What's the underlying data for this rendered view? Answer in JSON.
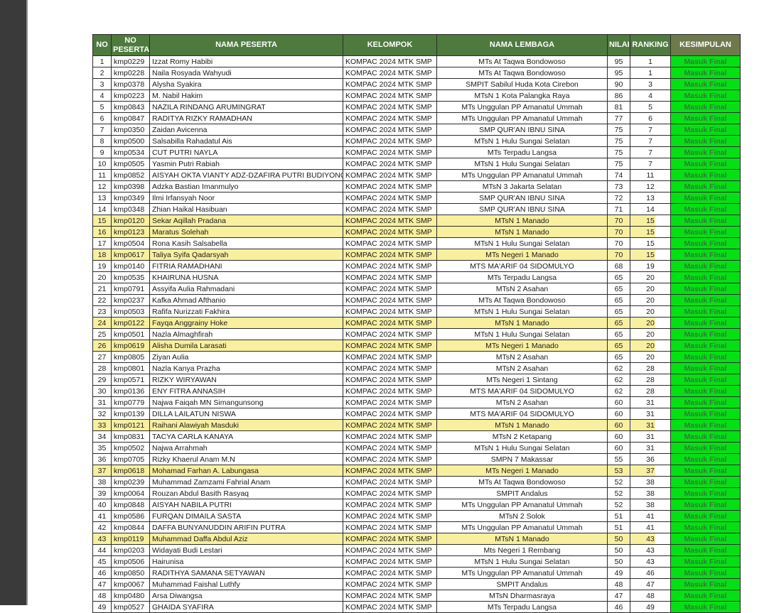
{
  "theme": {
    "sidebar_color": "#3a3a3a",
    "header_green": "#4e7a3e",
    "kesimpulan_header_olive": "#6e7a4c",
    "highlight_yellow": "#f8f09f",
    "final_green_bg": "#05e014",
    "final_text_green": "#35793c"
  },
  "table": {
    "columns": [
      {
        "key": "no",
        "label": "NO",
        "align": "center"
      },
      {
        "key": "no_peserta",
        "label": "NO PESERTA",
        "align": "left"
      },
      {
        "key": "nama_peserta",
        "label": "NAMA PESERTA",
        "align": "left"
      },
      {
        "key": "kelompok",
        "label": "KELOMPOK",
        "align": "left"
      },
      {
        "key": "nama_lembaga",
        "label": "NAMA LEMBAGA",
        "align": "center"
      },
      {
        "key": "nilai",
        "label": "NILAI",
        "align": "center"
      },
      {
        "key": "ranking",
        "label": "RANKING",
        "align": "center"
      },
      {
        "key": "kesimpulan",
        "label": "KESIMPULAN",
        "align": "center"
      }
    ],
    "rows": [
      {
        "no": "1",
        "no_peserta": "kmp0229",
        "nama_peserta": "Izzat Romy Habibi",
        "kelompok": "KOMPAC 2024 MTK SMP",
        "nama_lembaga": "MTs At Taqwa Bondowoso",
        "nilai": "95",
        "ranking": "1",
        "kesimpulan": "Masuk Final",
        "highlighted": false
      },
      {
        "no": "2",
        "no_peserta": "kmp0228",
        "nama_peserta": "Naila Rosyada Wahyudi",
        "kelompok": "KOMPAC 2024 MTK SMP",
        "nama_lembaga": "MTs At Taqwa Bondowoso",
        "nilai": "95",
        "ranking": "1",
        "kesimpulan": "Masuk Final",
        "highlighted": false
      },
      {
        "no": "3",
        "no_peserta": "kmp0378",
        "nama_peserta": "Alysha Syakira",
        "kelompok": "KOMPAC 2024 MTK SMP",
        "nama_lembaga": "SMPIT Sabilul Huda Kota Cirebon",
        "nilai": "90",
        "ranking": "3",
        "kesimpulan": "Masuk Final",
        "highlighted": false
      },
      {
        "no": "4",
        "no_peserta": "kmp0223",
        "nama_peserta": "M. Nabil Hakim",
        "kelompok": "KOMPAC 2024 MTK SMP",
        "nama_lembaga": "MTsN 1 Kota Palangka Raya",
        "nilai": "86",
        "ranking": "4",
        "kesimpulan": "Masuk Final",
        "highlighted": false
      },
      {
        "no": "5",
        "no_peserta": "kmp0843",
        "nama_peserta": "NAZILA RINDANG ARUMINGRAT",
        "kelompok": "KOMPAC 2024 MTK SMP",
        "nama_lembaga": "MTs Unggulan PP Amanatul Ummah",
        "nilai": "81",
        "ranking": "5",
        "kesimpulan": "Masuk Final",
        "highlighted": false
      },
      {
        "no": "6",
        "no_peserta": "kmp0847",
        "nama_peserta": "RADITYA RIZKY RAMADHAN",
        "kelompok": "KOMPAC 2024 MTK SMP",
        "nama_lembaga": "MTs Unggulan PP Amanatul Ummah",
        "nilai": "77",
        "ranking": "6",
        "kesimpulan": "Masuk Final",
        "highlighted": false
      },
      {
        "no": "7",
        "no_peserta": "kmp0350",
        "nama_peserta": "Zaidan Avicenna",
        "kelompok": "KOMPAC 2024 MTK SMP",
        "nama_lembaga": "SMP QUR'AN IBNU SINA",
        "nilai": "75",
        "ranking": "7",
        "kesimpulan": "Masuk Final",
        "highlighted": false
      },
      {
        "no": "8",
        "no_peserta": "kmp0500",
        "nama_peserta": "Salsabilla Rahadatul Ais",
        "kelompok": "KOMPAC 2024 MTK SMP",
        "nama_lembaga": "MTsN 1 Hulu Sungai Selatan",
        "nilai": "75",
        "ranking": "7",
        "kesimpulan": "Masuk Final",
        "highlighted": false
      },
      {
        "no": "9",
        "no_peserta": "kmp0534",
        "nama_peserta": "CUT PUTRI NAYLA",
        "kelompok": "KOMPAC 2024 MTK SMP",
        "nama_lembaga": "MTs Terpadu Langsa",
        "nilai": "75",
        "ranking": "7",
        "kesimpulan": "Masuk Final",
        "highlighted": false
      },
      {
        "no": "10",
        "no_peserta": "kmp0505",
        "nama_peserta": "Yasmin Putri Rabiah",
        "kelompok": "KOMPAC 2024 MTK SMP",
        "nama_lembaga": "MTsN 1 Hulu Sungai Selatan",
        "nilai": "75",
        "ranking": "7",
        "kesimpulan": "Masuk Final",
        "highlighted": false
      },
      {
        "no": "11",
        "no_peserta": "kmp0852",
        "nama_peserta": "AISYAH OKTA VIANTY ADZ-DZAFIRA PUTRI BUDIYONO",
        "kelompok": "KOMPAC 2024 MTK SMP",
        "nama_lembaga": "MTs Unggulan PP Amanatul Ummah",
        "nilai": "74",
        "ranking": "11",
        "kesimpulan": "Masuk Final",
        "highlighted": false
      },
      {
        "no": "12",
        "no_peserta": "kmp0398",
        "nama_peserta": "Adzka Bastian Imanmulyo",
        "kelompok": "KOMPAC 2024 MTK SMP",
        "nama_lembaga": "MTsN 3 Jakarta Selatan",
        "nilai": "73",
        "ranking": "12",
        "kesimpulan": "Masuk Final",
        "highlighted": false
      },
      {
        "no": "13",
        "no_peserta": "kmp0349",
        "nama_peserta": "Ilmi Irfansyah Noor",
        "kelompok": "KOMPAC 2024 MTK SMP",
        "nama_lembaga": "SMP QUR'AN IBNU SINA",
        "nilai": "72",
        "ranking": "13",
        "kesimpulan": "Masuk Final",
        "highlighted": false
      },
      {
        "no": "14",
        "no_peserta": "kmp0348",
        "nama_peserta": "Zhian Haikal Hasibuan",
        "kelompok": "KOMPAC 2024 MTK SMP",
        "nama_lembaga": "SMP QUR'AN IBNU SINA",
        "nilai": "71",
        "ranking": "14",
        "kesimpulan": "Masuk Final",
        "highlighted": false
      },
      {
        "no": "15",
        "no_peserta": "kmp0120",
        "nama_peserta": "Sekar Aqillah Pradana",
        "kelompok": "KOMPAC 2024 MTK SMP",
        "nama_lembaga": "MTsN 1 Manado",
        "nilai": "70",
        "ranking": "15",
        "kesimpulan": "Masuk Final",
        "highlighted": true
      },
      {
        "no": "16",
        "no_peserta": "kmp0123",
        "nama_peserta": "Maratus Solehah",
        "kelompok": "KOMPAC 2024 MTK SMP",
        "nama_lembaga": "MTsN 1 Manado",
        "nilai": "70",
        "ranking": "15",
        "kesimpulan": "Masuk Final",
        "highlighted": true
      },
      {
        "no": "17",
        "no_peserta": "kmp0504",
        "nama_peserta": "Rona Kasih Salsabella",
        "kelompok": "KOMPAC 2024 MTK SMP",
        "nama_lembaga": "MTsN 1 Hulu Sungai Selatan",
        "nilai": "70",
        "ranking": "15",
        "kesimpulan": "Masuk Final",
        "highlighted": false
      },
      {
        "no": "18",
        "no_peserta": "kmp0617",
        "nama_peserta": "Taliya Syifa Qadarsyah",
        "kelompok": "KOMPAC 2024 MTK SMP",
        "nama_lembaga": "MTs Negeri 1 Manado",
        "nilai": "70",
        "ranking": "15",
        "kesimpulan": "Masuk Final",
        "highlighted": true
      },
      {
        "no": "19",
        "no_peserta": "kmp0140",
        "nama_peserta": "FITRIA RAMADHANI",
        "kelompok": "KOMPAC 2024 MTK SMP",
        "nama_lembaga": "MTS MA'ARIF 04 SIDOMULYO",
        "nilai": "68",
        "ranking": "19",
        "kesimpulan": "Masuk Final",
        "highlighted": false
      },
      {
        "no": "20",
        "no_peserta": "kmp0535",
        "nama_peserta": "KHAIRUNA HUSNA",
        "kelompok": "KOMPAC 2024 MTK SMP",
        "nama_lembaga": "MTs Terpadu Langsa",
        "nilai": "65",
        "ranking": "20",
        "kesimpulan": "Masuk Final",
        "highlighted": false
      },
      {
        "no": "21",
        "no_peserta": "kmp0791",
        "nama_peserta": "Assyifa Aulia Rahmadani",
        "kelompok": "KOMPAC 2024 MTK SMP",
        "nama_lembaga": "MTsN 2 Asahan",
        "nilai": "65",
        "ranking": "20",
        "kesimpulan": "Masuk Final",
        "highlighted": false
      },
      {
        "no": "22",
        "no_peserta": "kmp0237",
        "nama_peserta": "Kafka Ahmad Afthanio",
        "kelompok": "KOMPAC 2024 MTK SMP",
        "nama_lembaga": "MTs At Taqwa Bondowoso",
        "nilai": "65",
        "ranking": "20",
        "kesimpulan": "Masuk Final",
        "highlighted": false
      },
      {
        "no": "23",
        "no_peserta": "kmp0503",
        "nama_peserta": "Rafifa Nurizzati Fakhira",
        "kelompok": "KOMPAC 2024 MTK SMP",
        "nama_lembaga": "MTsN 1 Hulu Sungai Selatan",
        "nilai": "65",
        "ranking": "20",
        "kesimpulan": "Masuk Final",
        "highlighted": false
      },
      {
        "no": "24",
        "no_peserta": "kmp0122",
        "nama_peserta": "Fayqa Anggrainy Hoke",
        "kelompok": "KOMPAC 2024 MTK SMP",
        "nama_lembaga": "MTsN 1 Manado",
        "nilai": "65",
        "ranking": "20",
        "kesimpulan": "Masuk Final",
        "highlighted": true
      },
      {
        "no": "25",
        "no_peserta": "kmp0501",
        "nama_peserta": "Nazla Almaghfirah",
        "kelompok": "KOMPAC 2024 MTK SMP",
        "nama_lembaga": "MTsN 1 Hulu Sungai Selatan",
        "nilai": "65",
        "ranking": "20",
        "kesimpulan": "Masuk Final",
        "highlighted": false
      },
      {
        "no": "26",
        "no_peserta": "kmp0619",
        "nama_peserta": "Alisha Dumila Larasati",
        "kelompok": "KOMPAC 2024 MTK SMP",
        "nama_lembaga": "MTs Negeri 1 Manado",
        "nilai": "65",
        "ranking": "20",
        "kesimpulan": "Masuk Final",
        "highlighted": true
      },
      {
        "no": "27",
        "no_peserta": "kmp0805",
        "nama_peserta": "Ziyan Aulia",
        "kelompok": "KOMPAC 2024 MTK SMP",
        "nama_lembaga": "MTsN 2 Asahan",
        "nilai": "65",
        "ranking": "20",
        "kesimpulan": "Masuk Final",
        "highlighted": false
      },
      {
        "no": "28",
        "no_peserta": "kmp0801",
        "nama_peserta": "Nazla Kanya Prazha",
        "kelompok": "KOMPAC 2024 MTK SMP",
        "nama_lembaga": "MTsN 2 Asahan",
        "nilai": "62",
        "ranking": "28",
        "kesimpulan": "Masuk Final",
        "highlighted": false
      },
      {
        "no": "29",
        "no_peserta": "kmp0571",
        "nama_peserta": "RIZKY WIRYAWAN",
        "kelompok": "KOMPAC 2024 MTK SMP",
        "nama_lembaga": "MTs Negeri 1 Sintang",
        "nilai": "62",
        "ranking": "28",
        "kesimpulan": "Masuk Final",
        "highlighted": false
      },
      {
        "no": "30",
        "no_peserta": "kmp0136",
        "nama_peserta": "ENY FITRA ANNASIH",
        "kelompok": "KOMPAC 2024 MTK SMP",
        "nama_lembaga": "MTS MA'ARIF 04 SIDOMULYO",
        "nilai": "62",
        "ranking": "28",
        "kesimpulan": "Masuk Final",
        "highlighted": false
      },
      {
        "no": "31",
        "no_peserta": "kmp0779",
        "nama_peserta": "Najwa Faiqah MN Simangunsong",
        "kelompok": "KOMPAC 2024 MTK SMP",
        "nama_lembaga": "MTsN 2 Asahan",
        "nilai": "60",
        "ranking": "31",
        "kesimpulan": "Masuk Final",
        "highlighted": false
      },
      {
        "no": "32",
        "no_peserta": "kmp0139",
        "nama_peserta": "DILLA LAILATUN NISWA",
        "kelompok": "KOMPAC 2024 MTK SMP",
        "nama_lembaga": "MTS MA'ARIF 04 SIDOMULYO",
        "nilai": "60",
        "ranking": "31",
        "kesimpulan": "Masuk Final",
        "highlighted": false
      },
      {
        "no": "33",
        "no_peserta": "kmp0121",
        "nama_peserta": "Raihani Alawiyah Masduki",
        "kelompok": "KOMPAC 2024 MTK SMP",
        "nama_lembaga": "MTsN 1 Manado",
        "nilai": "60",
        "ranking": "31",
        "kesimpulan": "Masuk Final",
        "highlighted": true
      },
      {
        "no": "34",
        "no_peserta": "kmp0831",
        "nama_peserta": "TACYA CARLA KANAYA",
        "kelompok": "KOMPAC 2024 MTK SMP",
        "nama_lembaga": "MTsN 2 Ketapang",
        "nilai": "60",
        "ranking": "31",
        "kesimpulan": "Masuk Final",
        "highlighted": false
      },
      {
        "no": "35",
        "no_peserta": "kmp0502",
        "nama_peserta": "Najwa Arrahmah",
        "kelompok": "KOMPAC 2024 MTK SMP",
        "nama_lembaga": "MTsN 1 Hulu Sungai Selatan",
        "nilai": "60",
        "ranking": "31",
        "kesimpulan": "Masuk Final",
        "highlighted": false
      },
      {
        "no": "36",
        "no_peserta": "kmp0705",
        "nama_peserta": "Rizky Khaerul Anam M.N",
        "kelompok": "KOMPAC 2024 MTK SMP",
        "nama_lembaga": "SMPN 7 Makassar",
        "nilai": "55",
        "ranking": "36",
        "kesimpulan": "Masuk Final",
        "highlighted": false
      },
      {
        "no": "37",
        "no_peserta": "kmp0618",
        "nama_peserta": "Mohamad Farhan A. Labungasa",
        "kelompok": "KOMPAC 2024 MTK SMP",
        "nama_lembaga": "MTs Negeri 1 Manado",
        "nilai": "53",
        "ranking": "37",
        "kesimpulan": "Masuk Final",
        "highlighted": true
      },
      {
        "no": "38",
        "no_peserta": "kmp0239",
        "nama_peserta": "Muhammad Zamzami Fahrial Anam",
        "kelompok": "KOMPAC 2024 MTK SMP",
        "nama_lembaga": "MTs At Taqwa Bondowoso",
        "nilai": "52",
        "ranking": "38",
        "kesimpulan": "Masuk Final",
        "highlighted": false
      },
      {
        "no": "39",
        "no_peserta": "kmp0064",
        "nama_peserta": "Rouzan Abdul Basith Rasyaq",
        "kelompok": "KOMPAC 2024 MTK SMP",
        "nama_lembaga": "SMPIT Andalus",
        "nilai": "52",
        "ranking": "38",
        "kesimpulan": "Masuk Final",
        "highlighted": false
      },
      {
        "no": "40",
        "no_peserta": "kmp0848",
        "nama_peserta": "AISYAH NABILA PUTRI",
        "kelompok": "KOMPAC 2024 MTK SMP",
        "nama_lembaga": "MTs Unggulan PP Amanatul Ummah",
        "nilai": "52",
        "ranking": "38",
        "kesimpulan": "Masuk Final",
        "highlighted": false
      },
      {
        "no": "41",
        "no_peserta": "kmp0586",
        "nama_peserta": "FURQAN DIMAILA SASTA",
        "kelompok": "KOMPAC 2024 MTK SMP",
        "nama_lembaga": "MTsN 2 Solok",
        "nilai": "51",
        "ranking": "41",
        "kesimpulan": "Masuk Final",
        "highlighted": false
      },
      {
        "no": "42",
        "no_peserta": "kmp0844",
        "nama_peserta": "DAFFA BUNYANUDDIN ARIFIN PUTRA",
        "kelompok": "KOMPAC 2024 MTK SMP",
        "nama_lembaga": "MTs Unggulan PP Amanatul Ummah",
        "nilai": "51",
        "ranking": "41",
        "kesimpulan": "Masuk Final",
        "highlighted": false
      },
      {
        "no": "43",
        "no_peserta": "kmp0119",
        "nama_peserta": "Muhammad Daffa Abdul Aziz",
        "kelompok": "KOMPAC 2024 MTK SMP",
        "nama_lembaga": "MTsN 1 Manado",
        "nilai": "50",
        "ranking": "43",
        "kesimpulan": "Masuk Final",
        "highlighted": true
      },
      {
        "no": "44",
        "no_peserta": "kmp0203",
        "nama_peserta": "Widayati Budi Lestari",
        "kelompok": "KOMPAC 2024 MTK SMP",
        "nama_lembaga": "Mts Negeri 1 Rembang",
        "nilai": "50",
        "ranking": "43",
        "kesimpulan": "Masuk Final",
        "highlighted": false
      },
      {
        "no": "45",
        "no_peserta": "kmp0506",
        "nama_peserta": "Hairunisa",
        "kelompok": "KOMPAC 2024 MTK SMP",
        "nama_lembaga": "MTsN 1 Hulu Sungai Selatan",
        "nilai": "50",
        "ranking": "43",
        "kesimpulan": "Masuk Final",
        "highlighted": false
      },
      {
        "no": "46",
        "no_peserta": "kmp0850",
        "nama_peserta": "RADITHYA SAMANA SETYAWAN",
        "kelompok": "KOMPAC 2024 MTK SMP",
        "nama_lembaga": "MTs Unggulan PP Amanatul Ummah",
        "nilai": "49",
        "ranking": "46",
        "kesimpulan": "Masuk Final",
        "highlighted": false
      },
      {
        "no": "47",
        "no_peserta": "kmp0067",
        "nama_peserta": "Muhammad Faishal Luthfy",
        "kelompok": "KOMPAC 2024 MTK SMP",
        "nama_lembaga": "SMPIT Andalus",
        "nilai": "48",
        "ranking": "47",
        "kesimpulan": "Masuk Final",
        "highlighted": false
      },
      {
        "no": "48",
        "no_peserta": "kmp0480",
        "nama_peserta": "Arsa Diwangsa",
        "kelompok": "KOMPAC 2024 MTK SMP",
        "nama_lembaga": "MTsN Dharmasraya",
        "nilai": "47",
        "ranking": "48",
        "kesimpulan": "Masuk Final",
        "highlighted": false
      },
      {
        "no": "49",
        "no_peserta": "kmp0527",
        "nama_peserta": "GHAIDA SYAFIRA",
        "kelompok": "KOMPAC 2024 MTK SMP",
        "nama_lembaga": "MTs Terpadu Langsa",
        "nilai": "46",
        "ranking": "49",
        "kesimpulan": "Masuk Final",
        "highlighted": false
      }
    ]
  }
}
